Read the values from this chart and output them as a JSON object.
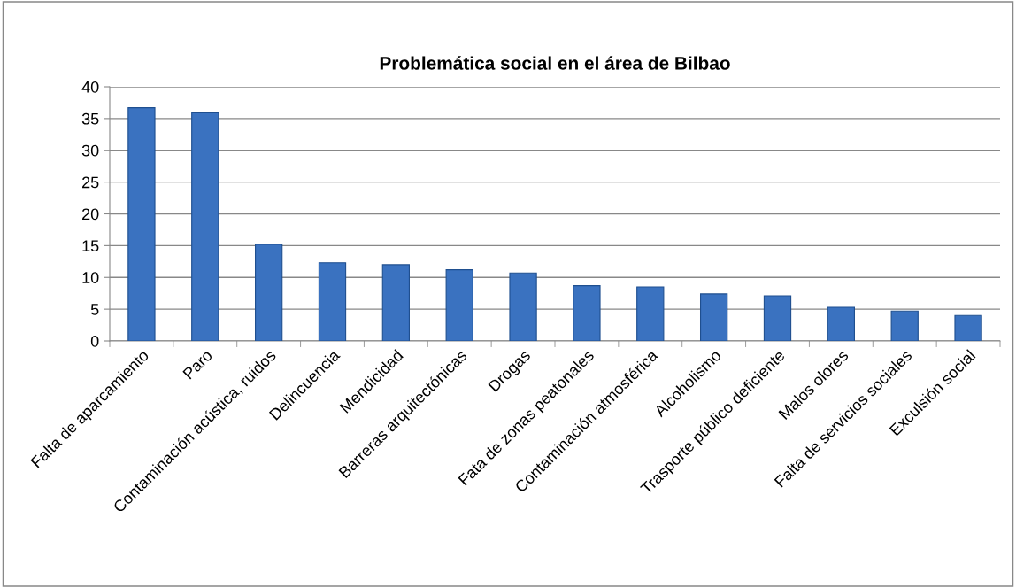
{
  "chart_data": {
    "type": "bar",
    "title": "Problemática social en el área de Bilbao",
    "categories": [
      "Falta de aparcamiento",
      "Paro",
      "Contaminación acústica, ruidos",
      "Delincuencia",
      "Mendicidad",
      "Barreras arquitectónicas",
      "Drogas",
      "Fata de zonas peatonales",
      "Contaminación atmosférica",
      "Alcoholismo",
      "Trasporte público deficiente",
      "Malos olores",
      "Falta de servicios sociales",
      "Exculsión social"
    ],
    "values": [
      36.7,
      35.9,
      15.2,
      12.3,
      12.0,
      11.2,
      10.7,
      8.7,
      8.5,
      7.4,
      7.1,
      5.3,
      4.7,
      4.0
    ],
    "color": "#3a72c0",
    "ylim": [
      0,
      40
    ],
    "yticks": [
      0,
      5,
      10,
      15,
      20,
      25,
      30,
      35,
      40
    ],
    "grid": "y"
  }
}
